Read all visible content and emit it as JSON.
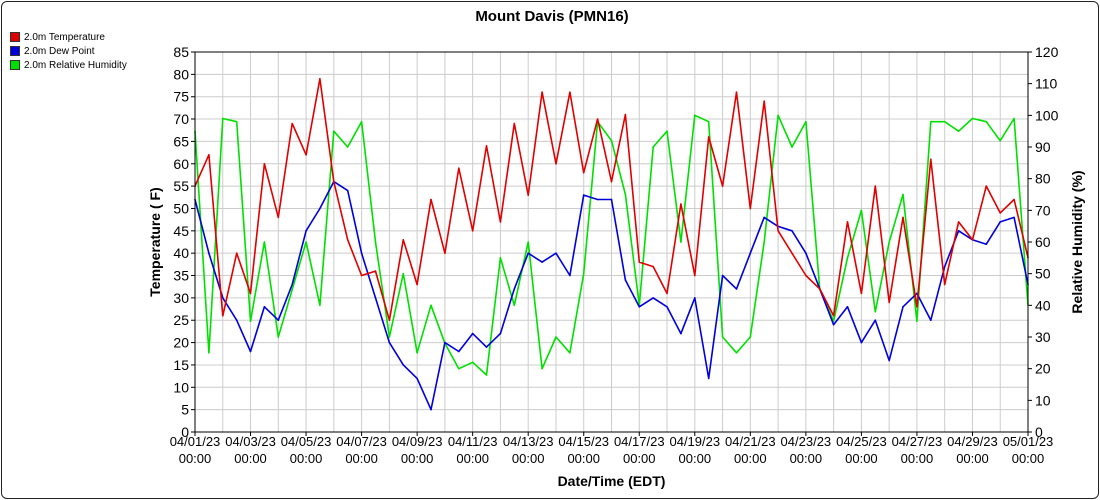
{
  "chart_data": {
    "type": "line",
    "title": "Mount Davis (PMN16)",
    "xlabel": "Date/Time (EDT)",
    "ylabel": "Temperature ( F)",
    "y2label": "Relative Humidity (%)",
    "ylim": [
      0,
      85
    ],
    "y2lim": [
      0,
      120
    ],
    "yticks": [
      "0",
      "5",
      "10",
      "15",
      "20",
      "25",
      "30",
      "35",
      "40",
      "45",
      "50",
      "55",
      "60",
      "65",
      "70",
      "75",
      "80",
      "85"
    ],
    "y2ticks": [
      "0",
      "10",
      "20",
      "30",
      "40",
      "50",
      "60",
      "70",
      "80",
      "90",
      "100",
      "110",
      "120"
    ],
    "xlim": [
      "04/01/23 00:00",
      "05/01/23 00:00"
    ],
    "xticks": [
      {
        "date": "04/01/23",
        "time": "00:00"
      },
      {
        "date": "04/03/23",
        "time": "00:00"
      },
      {
        "date": "04/05/23",
        "time": "00:00"
      },
      {
        "date": "04/07/23",
        "time": "00:00"
      },
      {
        "date": "04/09/23",
        "time": "00:00"
      },
      {
        "date": "04/11/23",
        "time": "00:00"
      },
      {
        "date": "04/13/23",
        "time": "00:00"
      },
      {
        "date": "04/15/23",
        "time": "00:00"
      },
      {
        "date": "04/17/23",
        "time": "00:00"
      },
      {
        "date": "04/19/23",
        "time": "00:00"
      },
      {
        "date": "04/21/23",
        "time": "00:00"
      },
      {
        "date": "04/23/23",
        "time": "00:00"
      },
      {
        "date": "04/25/23",
        "time": "00:00"
      },
      {
        "date": "04/27/23",
        "time": "00:00"
      },
      {
        "date": "04/29/23",
        "time": "00:00"
      },
      {
        "date": "05/01/23",
        "time": "00:00"
      }
    ],
    "grid": true,
    "legend_position": "top-left",
    "series": [
      {
        "name": "2.0m Temperature",
        "color": "#e00000",
        "axis": "left",
        "x": [
          "04/01/23 00:00",
          "04/01/23 12:00",
          "04/02/23 00:00",
          "04/02/23 12:00",
          "04/03/23 00:00",
          "04/03/23 12:00",
          "04/04/23 00:00",
          "04/04/23 12:00",
          "04/05/23 00:00",
          "04/05/23 12:00",
          "04/06/23 00:00",
          "04/06/23 12:00",
          "04/07/23 00:00",
          "04/07/23 12:00",
          "04/08/23 00:00",
          "04/08/23 12:00",
          "04/09/23 00:00",
          "04/09/23 12:00",
          "04/10/23 00:00",
          "04/10/23 12:00",
          "04/11/23 00:00",
          "04/11/23 12:00",
          "04/12/23 00:00",
          "04/12/23 12:00",
          "04/13/23 00:00",
          "04/13/23 12:00",
          "04/14/23 00:00",
          "04/14/23 12:00",
          "04/15/23 00:00",
          "04/15/23 12:00",
          "04/16/23 00:00",
          "04/16/23 12:00",
          "04/17/23 00:00",
          "04/17/23 12:00",
          "04/18/23 00:00",
          "04/18/23 12:00",
          "04/19/23 00:00",
          "04/19/23 12:00",
          "04/20/23 00:00",
          "04/20/23 12:00",
          "04/21/23 00:00",
          "04/21/23 12:00",
          "04/22/23 00:00",
          "04/22/23 12:00",
          "04/23/23 00:00",
          "04/23/23 12:00",
          "04/24/23 00:00",
          "04/24/23 12:00",
          "04/25/23 00:00",
          "04/25/23 12:00",
          "04/26/23 00:00",
          "04/26/23 12:00",
          "04/27/23 00:00",
          "04/27/23 12:00",
          "04/28/23 00:00",
          "04/28/23 12:00",
          "04/29/23 00:00",
          "04/29/23 12:00",
          "04/30/23 00:00",
          "04/30/23 12:00",
          "05/01/23 00:00"
        ],
        "values": [
          55,
          62,
          26,
          40,
          31,
          60,
          48,
          69,
          62,
          79,
          56,
          43,
          35,
          36,
          25,
          43,
          33,
          52,
          40,
          59,
          45,
          64,
          47,
          69,
          53,
          76,
          60,
          76,
          58,
          70,
          56,
          71,
          38,
          37,
          31,
          51,
          35,
          66,
          55,
          76,
          50,
          74,
          45,
          40,
          35,
          32,
          26,
          47,
          31,
          55,
          29,
          48,
          28,
          61,
          33,
          47,
          43,
          55,
          49,
          52,
          39
        ]
      },
      {
        "name": "2.0m Dew Point",
        "color": "#0000dd",
        "axis": "left",
        "x": [
          "04/01/23 00:00",
          "04/01/23 12:00",
          "04/02/23 00:00",
          "04/02/23 12:00",
          "04/03/23 00:00",
          "04/03/23 12:00",
          "04/04/23 00:00",
          "04/04/23 12:00",
          "04/05/23 00:00",
          "04/05/23 12:00",
          "04/06/23 00:00",
          "04/06/23 12:00",
          "04/07/23 00:00",
          "04/07/23 12:00",
          "04/08/23 00:00",
          "04/08/23 12:00",
          "04/09/23 00:00",
          "04/09/23 12:00",
          "04/10/23 00:00",
          "04/10/23 12:00",
          "04/11/23 00:00",
          "04/11/23 12:00",
          "04/12/23 00:00",
          "04/12/23 12:00",
          "04/13/23 00:00",
          "04/13/23 12:00",
          "04/14/23 00:00",
          "04/14/23 12:00",
          "04/15/23 00:00",
          "04/15/23 12:00",
          "04/16/23 00:00",
          "04/16/23 12:00",
          "04/17/23 00:00",
          "04/17/23 12:00",
          "04/18/23 00:00",
          "04/18/23 12:00",
          "04/19/23 00:00",
          "04/19/23 12:00",
          "04/20/23 00:00",
          "04/20/23 12:00",
          "04/21/23 00:00",
          "04/21/23 12:00",
          "04/22/23 00:00",
          "04/22/23 12:00",
          "04/23/23 00:00",
          "04/23/23 12:00",
          "04/24/23 00:00",
          "04/24/23 12:00",
          "04/25/23 00:00",
          "04/25/23 12:00",
          "04/26/23 00:00",
          "04/26/23 12:00",
          "04/27/23 00:00",
          "04/27/23 12:00",
          "04/28/23 00:00",
          "04/28/23 12:00",
          "04/29/23 00:00",
          "04/29/23 12:00",
          "04/30/23 00:00",
          "04/30/23 12:00",
          "05/01/23 00:00"
        ],
        "values": [
          52,
          40,
          30,
          25,
          18,
          28,
          25,
          33,
          45,
          50,
          56,
          54,
          40,
          30,
          20,
          15,
          12,
          5,
          20,
          18,
          22,
          19,
          22,
          32,
          40,
          38,
          40,
          35,
          53,
          52,
          52,
          34,
          28,
          30,
          28,
          22,
          30,
          12,
          35,
          32,
          40,
          48,
          46,
          45,
          40,
          32,
          24,
          28,
          20,
          25,
          16,
          28,
          31,
          25,
          37,
          45,
          43,
          42,
          47,
          48,
          33
        ]
      },
      {
        "name": "2.0m Relative Humidity",
        "color": "#00e000",
        "axis": "right",
        "x": [
          "04/01/23 00:00",
          "04/01/23 12:00",
          "04/02/23 00:00",
          "04/02/23 12:00",
          "04/03/23 00:00",
          "04/03/23 12:00",
          "04/04/23 00:00",
          "04/04/23 12:00",
          "04/05/23 00:00",
          "04/05/23 12:00",
          "04/06/23 00:00",
          "04/06/23 12:00",
          "04/07/23 00:00",
          "04/07/23 12:00",
          "04/08/23 00:00",
          "04/08/23 12:00",
          "04/09/23 00:00",
          "04/09/23 12:00",
          "04/10/23 00:00",
          "04/10/23 12:00",
          "04/11/23 00:00",
          "04/11/23 12:00",
          "04/12/23 00:00",
          "04/12/23 12:00",
          "04/13/23 00:00",
          "04/13/23 12:00",
          "04/14/23 00:00",
          "04/14/23 12:00",
          "04/15/23 00:00",
          "04/15/23 12:00",
          "04/16/23 00:00",
          "04/16/23 12:00",
          "04/17/23 00:00",
          "04/17/23 12:00",
          "04/18/23 00:00",
          "04/18/23 12:00",
          "04/19/23 00:00",
          "04/19/23 12:00",
          "04/20/23 00:00",
          "04/20/23 12:00",
          "04/21/23 00:00",
          "04/21/23 12:00",
          "04/22/23 00:00",
          "04/22/23 12:00",
          "04/23/23 00:00",
          "04/23/23 12:00",
          "04/24/23 00:00",
          "04/24/23 12:00",
          "04/25/23 00:00",
          "04/25/23 12:00",
          "04/26/23 00:00",
          "04/26/23 12:00",
          "04/27/23 00:00",
          "04/27/23 12:00",
          "04/28/23 00:00",
          "04/28/23 12:00",
          "04/29/23 00:00",
          "04/29/23 12:00",
          "04/30/23 00:00",
          "04/30/23 12:00",
          "05/01/23 00:00"
        ],
        "values": [
          95,
          25,
          99,
          98,
          35,
          60,
          30,
          45,
          60,
          40,
          95,
          90,
          98,
          60,
          30,
          50,
          25,
          40,
          28,
          20,
          22,
          18,
          55,
          40,
          60,
          20,
          30,
          25,
          50,
          98,
          92,
          75,
          40,
          90,
          95,
          60,
          100,
          98,
          30,
          25,
          30,
          60,
          100,
          90,
          98,
          45,
          35,
          55,
          70,
          38,
          60,
          75,
          35,
          98,
          98,
          95,
          99,
          98,
          92,
          99,
          40
        ]
      }
    ]
  }
}
